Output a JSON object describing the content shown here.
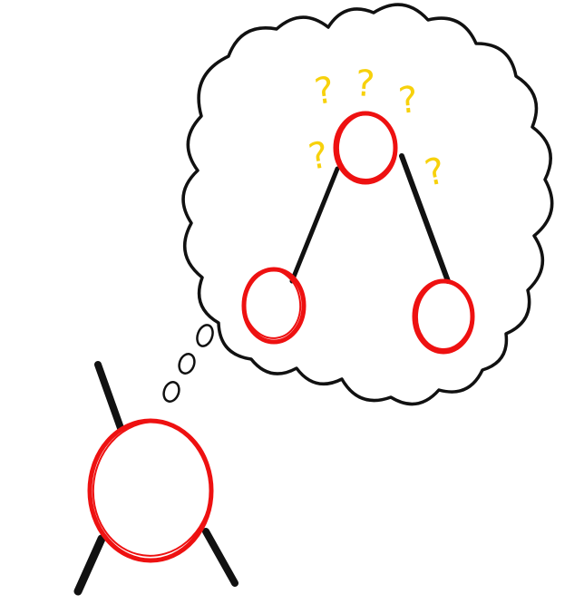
{
  "colors": {
    "background": "#ffffff",
    "node_stroke": "#ee1111",
    "edge_stroke": "#111111",
    "cloud_stroke": "#111111",
    "question_mark": "#f7d10c"
  },
  "thought": {
    "question_marks": [
      "?",
      "?",
      "?",
      "?",
      "?"
    ],
    "tree": {
      "root": "root-node",
      "children": [
        "left-child-node",
        "right-child-node"
      ]
    }
  },
  "thinker": {
    "node": "thinker-node",
    "edges": 3
  }
}
